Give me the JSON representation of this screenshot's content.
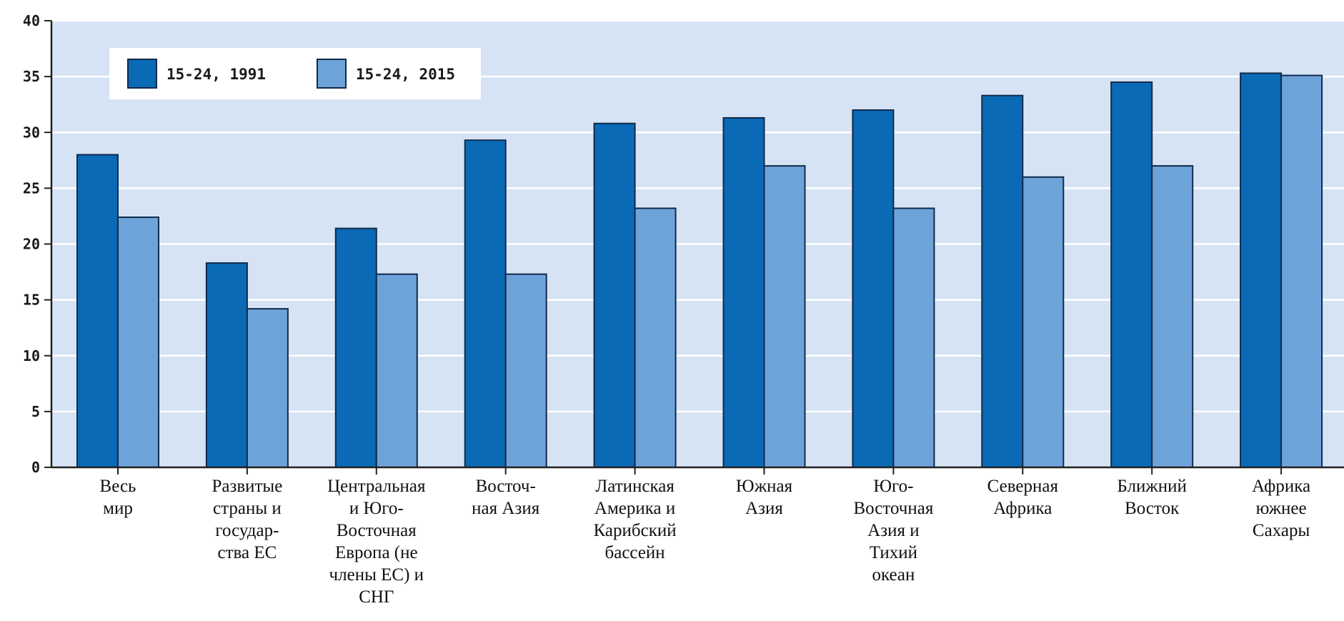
{
  "chart_data": {
    "type": "bar",
    "title": "",
    "xlabel": "",
    "ylabel": "",
    "ylim": [
      0,
      40
    ],
    "yticks": [
      0,
      5,
      10,
      15,
      20,
      25,
      30,
      35,
      40
    ],
    "grid": true,
    "legend_position": "top-left",
    "categories": [
      [
        "Весь",
        "мир"
      ],
      [
        "Развитые",
        "страны и",
        "государ-",
        "ства ЕС"
      ],
      [
        "Центральная",
        "и Юго-",
        "Восточная",
        "Европа (не",
        "члены ЕС) и",
        "СНГ"
      ],
      [
        "Восточ-",
        "ная Азия"
      ],
      [
        "Латинская",
        "Америка и",
        "Карибский",
        "бассейн"
      ],
      [
        "Южная",
        "Азия"
      ],
      [
        "Юго-",
        "Восточная",
        "Азия и",
        "Тихий",
        "океан"
      ],
      [
        "Северная",
        "Африка"
      ],
      [
        "Ближний",
        "Восток"
      ],
      [
        "Африка",
        "южнее",
        "Сахары"
      ]
    ],
    "series": [
      {
        "name": "15-24, 1991",
        "color": "#0a6ab5",
        "values": [
          28.0,
          18.3,
          21.4,
          29.3,
          30.8,
          31.3,
          32.0,
          33.3,
          34.5,
          35.3
        ]
      },
      {
        "name": "15-24, 2015",
        "color": "#6ea3da",
        "values": [
          22.4,
          14.2,
          17.3,
          17.3,
          23.2,
          27.0,
          23.2,
          26.0,
          27.0,
          35.1
        ]
      }
    ],
    "colors": {
      "plot_background": "#d6e3f5",
      "gridline": "#ffffff",
      "axis": "#222222",
      "bar_outline": "#102a4a"
    }
  }
}
